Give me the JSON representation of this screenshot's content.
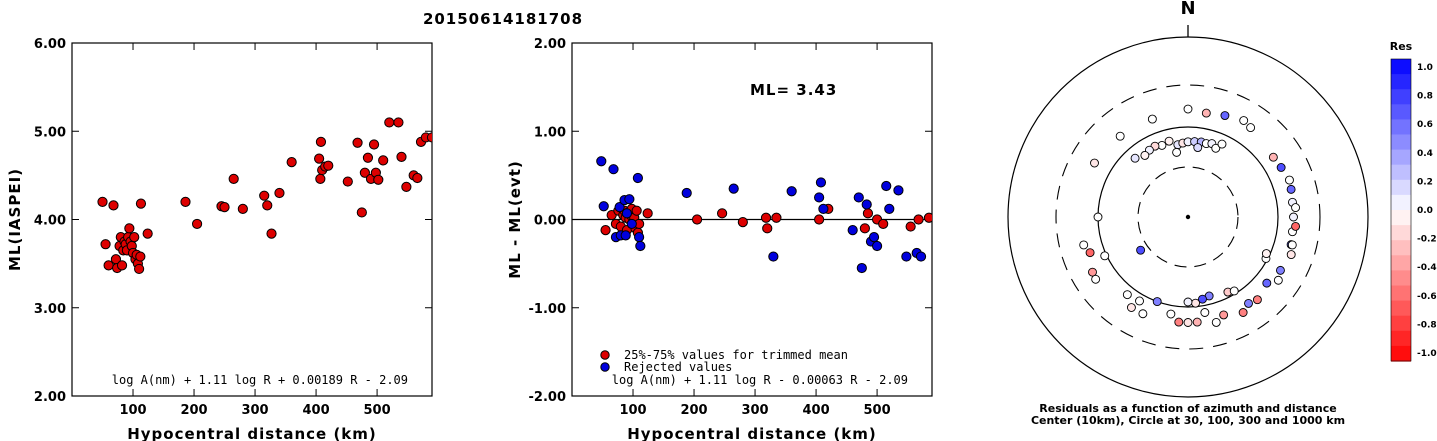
{
  "title": "20150614181708",
  "chart_data": [
    {
      "type": "scatter",
      "ylabel": "ML(IASPEI)",
      "xlabel": "Hypocentral distance (km)",
      "xlim": [
        0,
        590
      ],
      "ylim": [
        2.0,
        6.0
      ],
      "xticks": [
        100,
        200,
        300,
        400,
        500
      ],
      "yticks": [
        2.0,
        3.0,
        4.0,
        5.0,
        6.0
      ],
      "ytick_labels": [
        "2.00",
        "3.00",
        "4.00",
        "5.00",
        "6.00"
      ],
      "xtick_labels": [
        "100",
        "200",
        "300",
        "400",
        "500"
      ],
      "formula": "log A(nm) + 1.11 log R + 0.00189 R - 2.09",
      "point_color": "#dd0000",
      "points": [
        [
          50,
          4.2
        ],
        [
          55,
          3.72
        ],
        [
          60,
          3.48
        ],
        [
          68,
          4.16
        ],
        [
          72,
          3.55
        ],
        [
          74,
          3.45
        ],
        [
          78,
          3.7
        ],
        [
          80,
          3.8
        ],
        [
          82,
          3.48
        ],
        [
          84,
          3.65
        ],
        [
          86,
          3.75
        ],
        [
          88,
          3.72
        ],
        [
          90,
          3.65
        ],
        [
          92,
          3.8
        ],
        [
          94,
          3.9
        ],
        [
          96,
          3.75
        ],
        [
          98,
          3.7
        ],
        [
          100,
          3.62
        ],
        [
          102,
          3.8
        ],
        [
          104,
          3.55
        ],
        [
          106,
          3.6
        ],
        [
          108,
          3.5
        ],
        [
          110,
          3.44
        ],
        [
          112,
          3.58
        ],
        [
          113,
          4.18
        ],
        [
          124,
          3.84
        ],
        [
          186,
          4.2
        ],
        [
          205,
          3.95
        ],
        [
          245,
          4.15
        ],
        [
          250,
          4.14
        ],
        [
          265,
          4.46
        ],
        [
          280,
          4.12
        ],
        [
          315,
          4.27
        ],
        [
          320,
          4.16
        ],
        [
          327,
          3.84
        ],
        [
          340,
          4.3
        ],
        [
          360,
          4.65
        ],
        [
          405,
          4.69
        ],
        [
          407,
          4.46
        ],
        [
          408,
          4.88
        ],
        [
          410,
          4.56
        ],
        [
          415,
          4.6
        ],
        [
          420,
          4.61
        ],
        [
          452,
          4.43
        ],
        [
          468,
          4.87
        ],
        [
          475,
          4.08
        ],
        [
          480,
          4.53
        ],
        [
          485,
          4.7
        ],
        [
          490,
          4.46
        ],
        [
          495,
          4.85
        ],
        [
          498,
          4.53
        ],
        [
          502,
          4.45
        ],
        [
          510,
          4.67
        ],
        [
          520,
          5.1
        ],
        [
          535,
          5.1
        ],
        [
          540,
          4.71
        ],
        [
          548,
          4.37
        ],
        [
          560,
          4.5
        ],
        [
          566,
          4.47
        ],
        [
          572,
          4.88
        ],
        [
          580,
          4.93
        ],
        [
          590,
          4.93
        ]
      ]
    },
    {
      "type": "scatter",
      "ylabel": "ML - ML(evt)",
      "xlabel": "Hypocentral distance (km)",
      "xlim": [
        0,
        590
      ],
      "ylim": [
        -2.0,
        2.0
      ],
      "xticks": [
        100,
        200,
        300,
        400,
        500
      ],
      "yticks": [
        -2.0,
        -1.0,
        0.0,
        1.0,
        2.0
      ],
      "ytick_labels": [
        "-2.00",
        "-1.00",
        "0.00",
        "1.00",
        "2.00"
      ],
      "xtick_labels": [
        "100",
        "200",
        "300",
        "400",
        "500"
      ],
      "ml_label": "ML= 3.43",
      "formula": "log A(nm) + 1.11 log R - 0.00063 R - 2.09",
      "legend": [
        {
          "label": "25%-75% values for trimmed mean",
          "color": "#dd0000"
        },
        {
          "label": "Rejected values",
          "color": "#0000dd"
        }
      ],
      "series": [
        {
          "name": "25%-75% values for trimmed mean",
          "color": "#dd0000",
          "points": [
            [
              55,
              -0.12
            ],
            [
              65,
              0.05
            ],
            [
              72,
              -0.05
            ],
            [
              76,
              0.1
            ],
            [
              80,
              -0.08
            ],
            [
              84,
              0.05
            ],
            [
              86,
              0.1
            ],
            [
              88,
              0.02
            ],
            [
              90,
              -0.12
            ],
            [
              92,
              0.08
            ],
            [
              94,
              0.0
            ],
            [
              96,
              0.05
            ],
            [
              98,
              0.12
            ],
            [
              100,
              -0.05
            ],
            [
              102,
              0.02
            ],
            [
              104,
              -0.1
            ],
            [
              106,
              0.1
            ],
            [
              108,
              -0.15
            ],
            [
              110,
              -0.05
            ],
            [
              124,
              0.07
            ],
            [
              205,
              0.0
            ],
            [
              246,
              0.07
            ],
            [
              280,
              -0.03
            ],
            [
              318,
              0.02
            ],
            [
              320,
              -0.1
            ],
            [
              335,
              0.02
            ],
            [
              405,
              0.0
            ],
            [
              420,
              0.12
            ],
            [
              480,
              -0.1
            ],
            [
              485,
              0.07
            ],
            [
              500,
              0.0
            ],
            [
              510,
              -0.05
            ],
            [
              555,
              -0.08
            ],
            [
              568,
              0.0
            ],
            [
              585,
              0.02
            ]
          ]
        },
        {
          "name": "Rejected values",
          "color": "#0000dd",
          "points": [
            [
              48,
              0.66
            ],
            [
              52,
              0.15
            ],
            [
              68,
              0.57
            ],
            [
              72,
              -0.2
            ],
            [
              78,
              0.14
            ],
            [
              80,
              -0.18
            ],
            [
              86,
              0.22
            ],
            [
              88,
              -0.18
            ],
            [
              90,
              0.07
            ],
            [
              94,
              0.23
            ],
            [
              98,
              -0.05
            ],
            [
              108,
              0.47
            ],
            [
              110,
              -0.2
            ],
            [
              112,
              -0.3
            ],
            [
              188,
              0.3
            ],
            [
              265,
              0.35
            ],
            [
              330,
              -0.42
            ],
            [
              360,
              0.32
            ],
            [
              405,
              0.25
            ],
            [
              408,
              0.42
            ],
            [
              412,
              0.12
            ],
            [
              460,
              -0.12
            ],
            [
              470,
              0.25
            ],
            [
              475,
              -0.55
            ],
            [
              483,
              0.17
            ],
            [
              490,
              -0.25
            ],
            [
              495,
              -0.2
            ],
            [
              500,
              -0.3
            ],
            [
              515,
              0.38
            ],
            [
              520,
              0.12
            ],
            [
              535,
              0.33
            ],
            [
              548,
              -0.42
            ],
            [
              565,
              -0.38
            ],
            [
              572,
              -0.42
            ]
          ]
        }
      ]
    },
    {
      "type": "polar_scatter",
      "north_label": "N",
      "caption_line1": "Residuals as a function of azimuth and distance",
      "caption_line2": "Center (10km), Circle at 30, 100, 300 and 1000 km",
      "colorbar_title": "Res",
      "colorbar_ticks": [
        "1.0",
        "0.8",
        "0.6",
        "0.4",
        "0.2",
        "0.0",
        "-0.2",
        "-0.4",
        "-0.6",
        "-0.8",
        "-1.0"
      ],
      "rings_km": [
        30,
        100,
        300,
        1000
      ],
      "points": [
        {
          "az": 352,
          "dist": 60,
          "res": 0.1
        },
        {
          "az": 356,
          "dist": 62,
          "res": -0.1
        },
        {
          "az": 0,
          "dist": 64,
          "res": 0.05
        },
        {
          "az": 5,
          "dist": 65,
          "res": 0.2
        },
        {
          "az": 10,
          "dist": 66,
          "res": 0.3
        },
        {
          "az": 14,
          "dist": 65,
          "res": 0.0
        },
        {
          "az": 346,
          "dist": 70,
          "res": -0.05
        },
        {
          "az": 340,
          "dist": 66,
          "res": 0.0
        },
        {
          "az": 335,
          "dist": 70,
          "res": -0.15
        },
        {
          "az": 330,
          "dist": 68,
          "res": 0.05
        },
        {
          "az": 325,
          "dist": 64,
          "res": -0.05
        },
        {
          "az": 318,
          "dist": 72,
          "res": 0.1
        },
        {
          "az": 18,
          "dist": 68,
          "res": 0.05
        },
        {
          "az": 22,
          "dist": 62,
          "res": 0.0
        },
        {
          "az": 8,
          "dist": 55,
          "res": 0.15
        },
        {
          "az": 350,
          "dist": 48,
          "res": 0.0
        },
        {
          "az": 235,
          "dist": 38,
          "res": 0.7
        },
        {
          "az": 25,
          "dist": 75,
          "res": 0.0
        },
        {
          "az": 165,
          "dist": 78,
          "res": 0.5
        },
        {
          "az": 170,
          "dist": 82,
          "res": 0.7
        },
        {
          "az": 175,
          "dist": 90,
          "res": -0.1
        },
        {
          "az": 180,
          "dist": 86,
          "res": 0.05
        },
        {
          "az": 152,
          "dist": 86,
          "res": -0.2
        },
        {
          "az": 148,
          "dist": 92,
          "res": 0.0
        },
        {
          "az": 118,
          "dist": 95,
          "res": 0.0
        },
        {
          "az": 115,
          "dist": 90,
          "res": -0.05
        },
        {
          "az": 245,
          "dist": 105,
          "res": 0.0
        },
        {
          "az": 190,
          "dist": 125,
          "res": 0.0
        },
        {
          "az": 200,
          "dist": 100,
          "res": 0.5
        },
        {
          "az": 210,
          "dist": 120,
          "res": 0.0
        },
        {
          "az": 218,
          "dist": 125,
          "res": 0.0
        },
        {
          "az": 170,
          "dist": 120,
          "res": 0.0
        },
        {
          "az": 165,
          "dist": 165,
          "res": 0.0
        },
        {
          "az": 180,
          "dist": 150,
          "res": -0.1
        },
        {
          "az": 145,
          "dist": 150,
          "res": 0.5
        },
        {
          "az": 130,
          "dist": 140,
          "res": 0.6
        },
        {
          "az": 140,
          "dist": 160,
          "res": -0.5
        },
        {
          "az": 105,
          "dist": 155,
          "res": 0.6
        },
        {
          "az": 98,
          "dist": 150,
          "res": 0.0
        },
        {
          "az": 90,
          "dist": 150,
          "res": 0.05
        },
        {
          "az": 82,
          "dist": 150,
          "res": 0.05
        },
        {
          "az": 75,
          "dist": 155,
          "res": 0.6
        },
        {
          "az": 70,
          "dist": 160,
          "res": 0.0
        },
        {
          "az": 62,
          "dist": 150,
          "res": 0.7
        },
        {
          "az": 55,
          "dist": 145,
          "res": -0.3
        },
        {
          "az": 35,
          "dist": 165,
          "res": 0.0
        },
        {
          "az": 30,
          "dist": 175,
          "res": 0.0
        },
        {
          "az": 20,
          "dist": 160,
          "res": 0.6
        },
        {
          "az": 10,
          "dist": 150,
          "res": -0.3
        },
        {
          "az": 0,
          "dist": 160,
          "res": 0.0
        },
        {
          "az": 340,
          "dist": 145,
          "res": 0.0
        },
        {
          "az": 320,
          "dist": 150,
          "res": 0.0
        },
        {
          "az": 300,
          "dist": 160,
          "res": -0.1
        },
        {
          "az": 255,
          "dist": 160,
          "res": 0.0
        },
        {
          "az": 240,
          "dist": 170,
          "res": -0.4
        },
        {
          "az": 236,
          "dist": 175,
          "res": 0.0
        },
        {
          "az": 212,
          "dist": 155,
          "res": -0.1
        },
        {
          "az": 205,
          "dist": 155,
          "res": 0.0
        },
        {
          "az": 185,
          "dist": 150,
          "res": -0.5
        },
        {
          "az": 175,
          "dist": 150,
          "res": -0.3
        },
        {
          "az": 160,
          "dist": 145,
          "res": -0.4
        },
        {
          "az": 150,
          "dist": 170,
          "res": -0.5
        },
        {
          "az": 95,
          "dist": 160,
          "res": -0.6
        },
        {
          "az": 85,
          "dist": 160,
          "res": 0.0
        },
        {
          "az": 105,
          "dist": 160,
          "res": 0.0
        },
        {
          "az": 110,
          "dist": 168,
          "res": -0.1
        },
        {
          "az": 120,
          "dist": 155,
          "res": 0.5
        },
        {
          "az": 125,
          "dist": 170,
          "res": 0.0
        },
        {
          "az": 270,
          "dist": 100,
          "res": 0.0
        },
        {
          "az": 250,
          "dist": 145,
          "res": -0.6
        }
      ]
    }
  ]
}
